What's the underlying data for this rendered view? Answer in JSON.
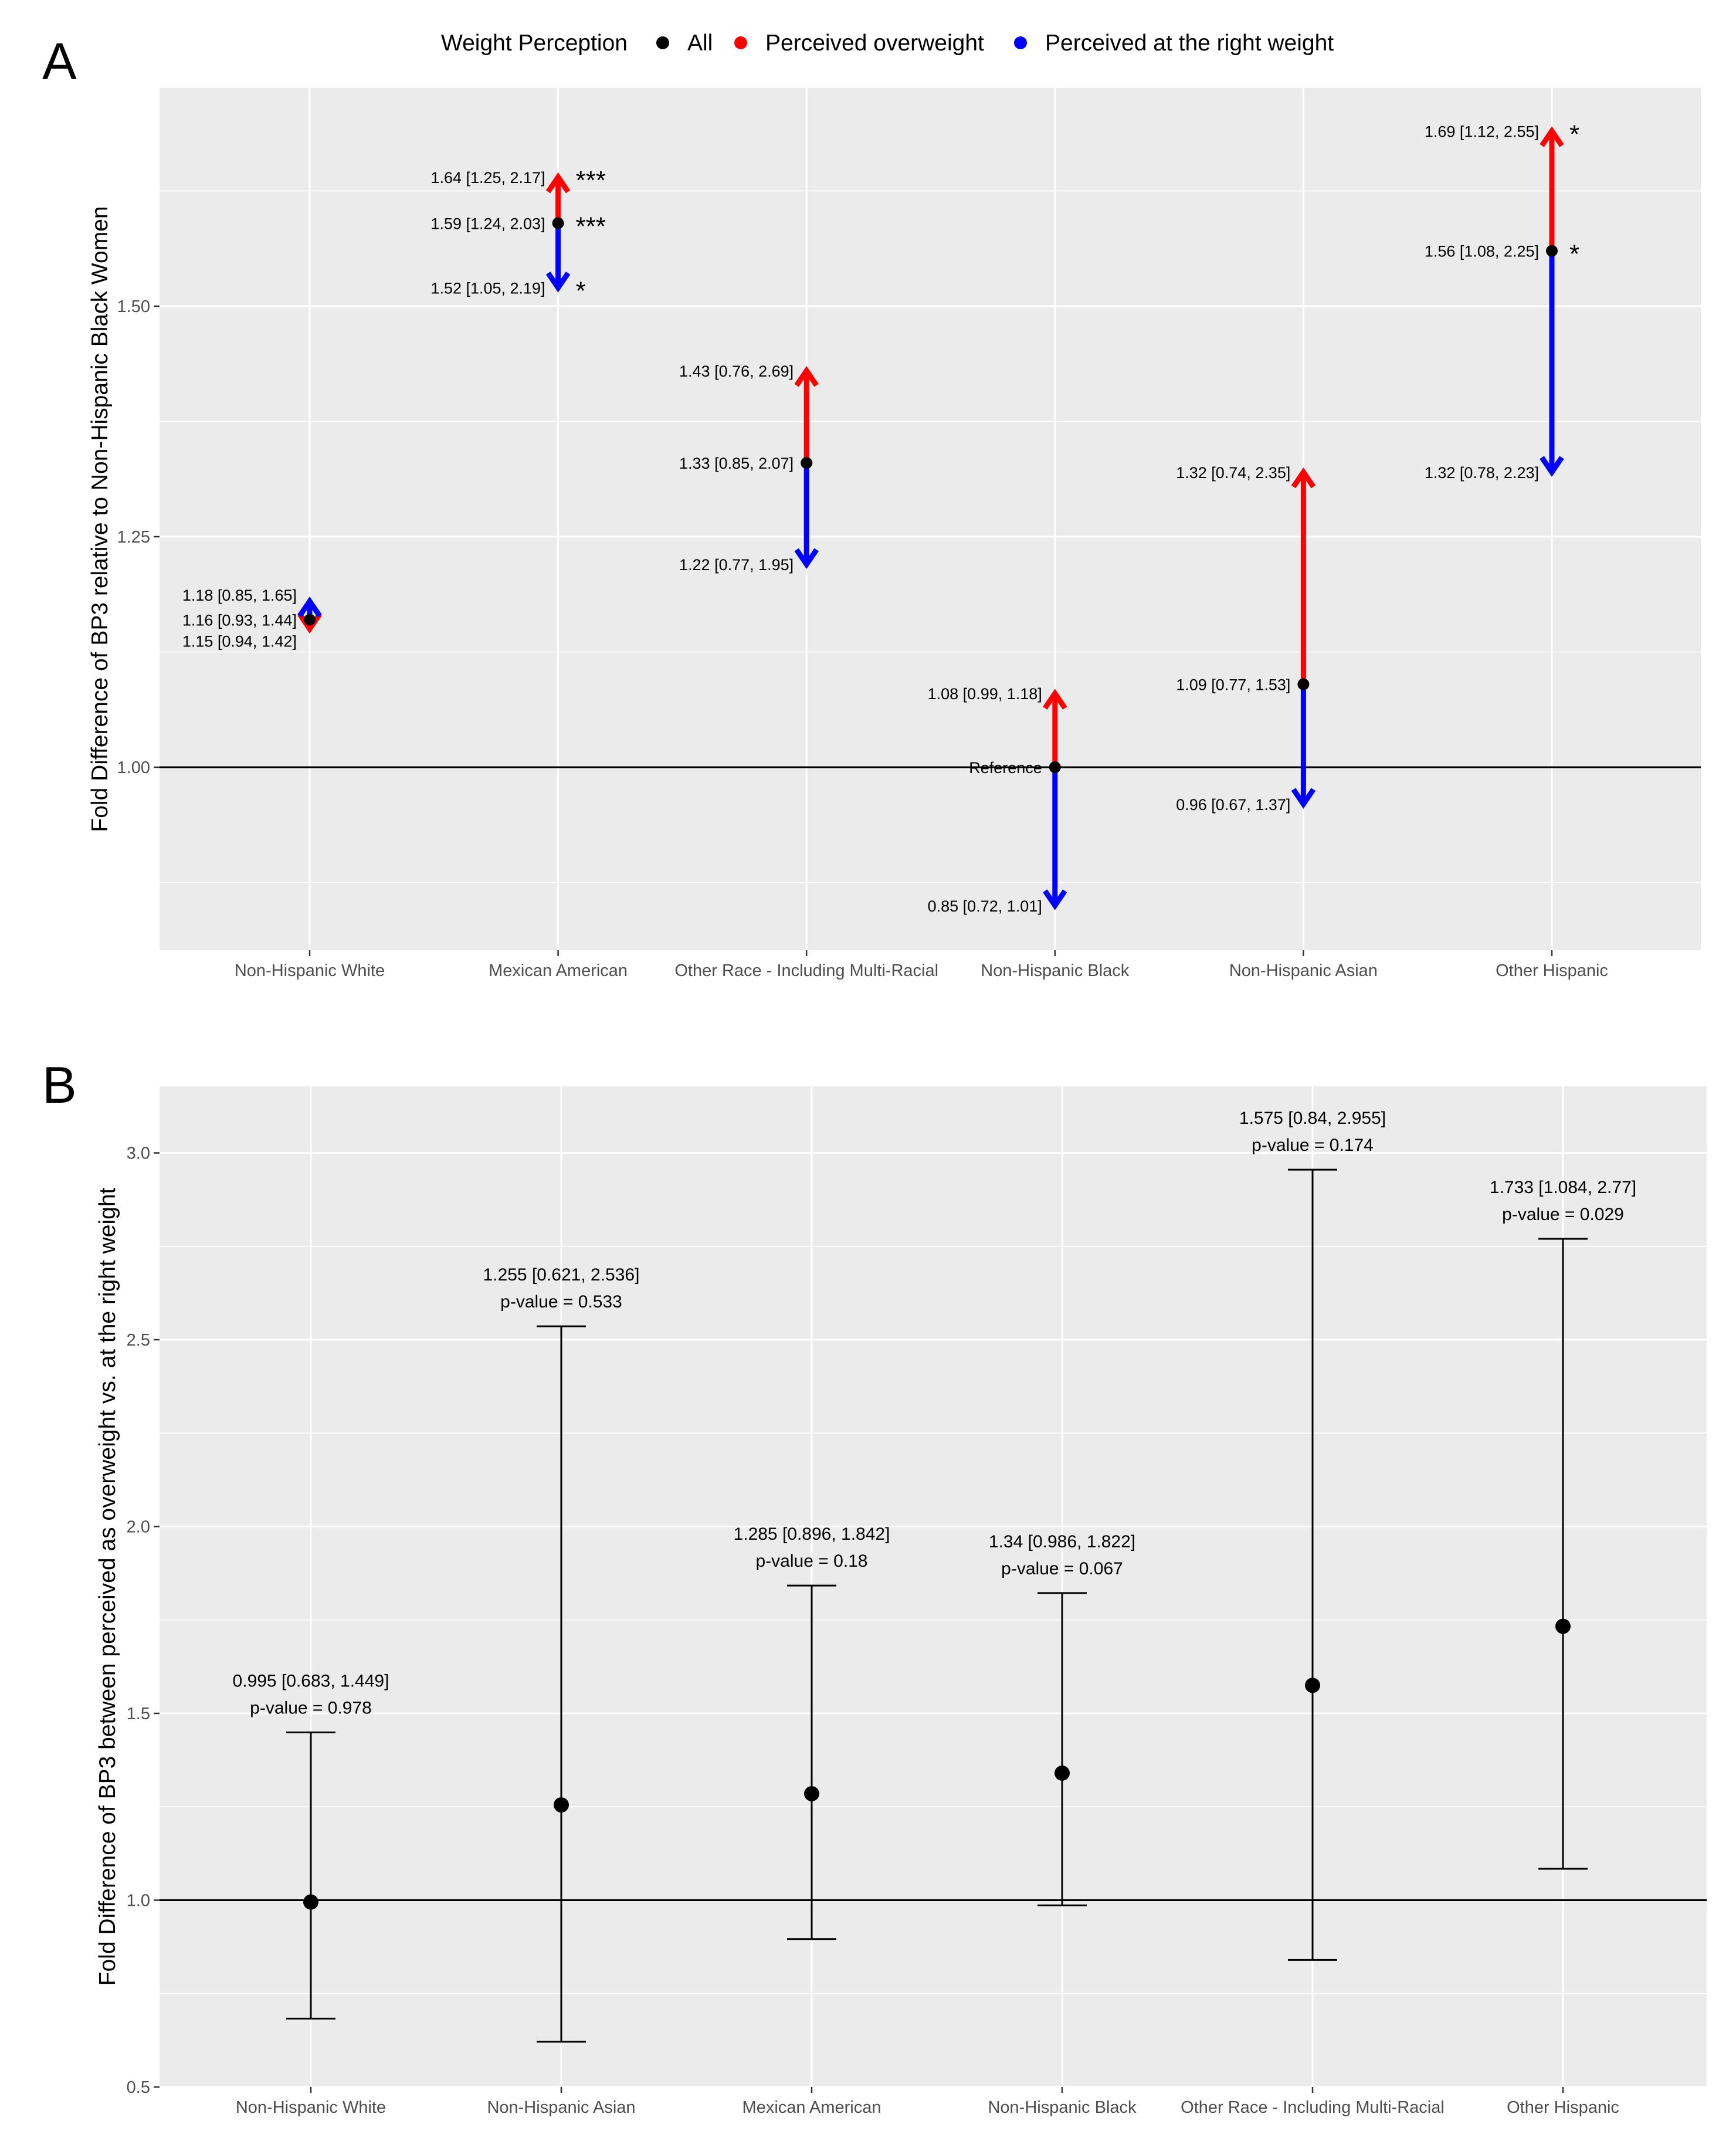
{
  "legend": {
    "title": "Weight Perception",
    "items": [
      {
        "label": "All",
        "color": "#000000"
      },
      {
        "label": "Perceived overweight",
        "color": "#ff0000"
      },
      {
        "label": "Perceived at the right weight",
        "color": "#0000ff"
      }
    ]
  },
  "chart_data": [
    {
      "panel": "A",
      "type": "scatter",
      "ylabel": "Fold Difference of BP3 relative to Non-Hispanic Black Women",
      "ylim": [
        0.9,
        1.74
      ],
      "yticks": [
        "1.00",
        "1.25",
        "1.50"
      ],
      "ytick_values": [
        1.0,
        1.25,
        1.5
      ],
      "reference_line": 1.0,
      "categories": [
        "Non-Hispanic White",
        "Mexican American",
        "Other Race - Including Multi-Racial",
        "Non-Hispanic Black",
        "Non-Hispanic Asian",
        "Other Hispanic"
      ],
      "groups": [
        {
          "category": "Non-Hispanic White",
          "all": {
            "value": 1.16,
            "label": "1.16 [0.93, 1.44]",
            "sig": ""
          },
          "overweight": {
            "value": 1.15,
            "label": "1.15 [0.94, 1.42]",
            "sig": ""
          },
          "right_weight": {
            "value": 1.18,
            "label": "1.18 [0.85, 1.65]",
            "sig": ""
          }
        },
        {
          "category": "Mexican American",
          "all": {
            "value": 1.59,
            "label": "1.59 [1.24, 2.03]",
            "sig": "***"
          },
          "overweight": {
            "value": 1.64,
            "label": "1.64 [1.25, 2.17]",
            "sig": "***"
          },
          "right_weight": {
            "value": 1.52,
            "label": "1.52 [1.05, 2.19]",
            "sig": "*"
          }
        },
        {
          "category": "Other Race - Including Multi-Racial",
          "all": {
            "value": 1.33,
            "label": "1.33 [0.85, 2.07]",
            "sig": ""
          },
          "overweight": {
            "value": 1.43,
            "label": "1.43 [0.76, 2.69]",
            "sig": ""
          },
          "right_weight": {
            "value": 1.22,
            "label": "1.22 [0.77, 1.95]",
            "sig": ""
          }
        },
        {
          "category": "Non-Hispanic Black",
          "all": {
            "value": 1.0,
            "label": "Reference",
            "sig": ""
          },
          "overweight": {
            "value": 1.08,
            "label": "1.08 [0.99, 1.18]",
            "sig": ""
          },
          "right_weight": {
            "value": 0.85,
            "label": "0.85 [0.72, 1.01]",
            "sig": ""
          }
        },
        {
          "category": "Non-Hispanic Asian",
          "all": {
            "value": 1.09,
            "label": "1.09 [0.77, 1.53]",
            "sig": ""
          },
          "overweight": {
            "value": 1.32,
            "label": "1.32 [0.74, 2.35]",
            "sig": ""
          },
          "right_weight": {
            "value": 0.96,
            "label": "0.96 [0.67, 1.37]",
            "sig": ""
          }
        },
        {
          "category": "Other Hispanic",
          "all": {
            "value": 1.56,
            "label": "1.56 [1.08, 2.25]",
            "sig": "*"
          },
          "overweight": {
            "value": 1.69,
            "label": "1.69 [1.12, 2.55]",
            "sig": "*"
          },
          "right_weight": {
            "value": 1.32,
            "label": "1.32 [0.78, 2.23]",
            "sig": ""
          }
        }
      ]
    },
    {
      "panel": "B",
      "type": "scatter",
      "ylabel": "Fold Difference of BP3 between perceived as overweight vs. at the right weight",
      "ylim": [
        0.5,
        3.18
      ],
      "yticks": [
        "0.5",
        "1.0",
        "1.5",
        "2.0",
        "2.5",
        "3.0"
      ],
      "ytick_values": [
        0.5,
        1.0,
        1.5,
        2.0,
        2.5,
        3.0
      ],
      "reference_line": 1.0,
      "categories": [
        "Non-Hispanic White",
        "Non-Hispanic Asian",
        "Mexican American",
        "Non-Hispanic Black",
        "Other Race - Including Multi-Racial",
        "Other Hispanic"
      ],
      "points": [
        {
          "category": "Non-Hispanic White",
          "value": 0.995,
          "lower": 0.683,
          "upper": 1.449,
          "label": "0.995 [0.683, 1.449]",
          "pvalue": "p-value = 0.978"
        },
        {
          "category": "Non-Hispanic Asian",
          "value": 1.255,
          "lower": 0.621,
          "upper": 2.536,
          "label": "1.255 [0.621, 2.536]",
          "pvalue": "p-value = 0.533"
        },
        {
          "category": "Mexican American",
          "value": 1.285,
          "lower": 0.896,
          "upper": 1.842,
          "label": "1.285 [0.896, 1.842]",
          "pvalue": "p-value = 0.18"
        },
        {
          "category": "Non-Hispanic Black",
          "value": 1.34,
          "lower": 0.986,
          "upper": 1.822,
          "label": "1.34 [0.986, 1.822]",
          "pvalue": "p-value = 0.067"
        },
        {
          "category": "Other Race - Including Multi-Racial",
          "value": 1.575,
          "lower": 0.84,
          "upper": 2.955,
          "label": "1.575 [0.84, 2.955]",
          "pvalue": "p-value = 0.174"
        },
        {
          "category": "Other Hispanic",
          "value": 1.733,
          "lower": 1.084,
          "upper": 2.77,
          "label": "1.733 [1.084, 2.77]",
          "pvalue": "p-value = 0.029"
        }
      ]
    }
  ]
}
